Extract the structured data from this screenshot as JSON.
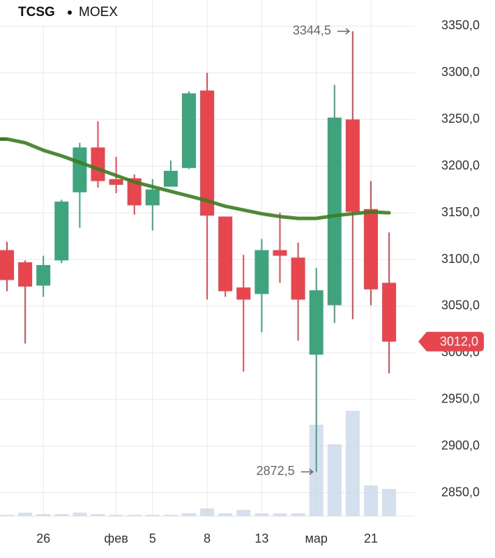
{
  "chart_data": {
    "type": "candlestick",
    "title": "TCSG",
    "subtitle": "MOEX",
    "categories": [
      null,
      null,
      "26",
      null,
      null,
      null,
      "фев",
      null,
      "5",
      null,
      null,
      "8",
      null,
      null,
      "13",
      null,
      null,
      "мар",
      null,
      null,
      "21",
      null
    ],
    "open": [
      3110,
      3097,
      3072,
      3099,
      3172,
      3220,
      3186,
      3187,
      3158,
      3178,
      3198,
      3281,
      3146,
      3070,
      3063,
      3110,
      3102,
      2998,
      3051,
      3250,
      3154,
      3075
    ],
    "high": [
      3119,
      3099,
      3104,
      3164,
      3225,
      3248,
      3210,
      3191,
      3186,
      3206,
      3280,
      3300,
      3146,
      3105,
      3122,
      3150,
      3118,
      3091,
      3287,
      3344.5,
      3184,
      3129
    ],
    "low": [
      3066,
      3010,
      3060,
      3096,
      3134,
      3177,
      3171,
      3148,
      3131,
      3178,
      3197,
      3057,
      3060,
      2980,
      3022,
      3075,
      3013,
      2872.5,
      3032,
      3036,
      3051,
      2978
    ],
    "close": [
      3078,
      3071,
      3094,
      3162,
      3220,
      3184,
      3180,
      3158,
      3175,
      3195,
      3278,
      3147,
      3066,
      3057,
      3110,
      3104,
      3057,
      3067,
      3252,
      3151,
      3068,
      3012
    ],
    "up_color": "#3fa37e",
    "down_color": "#e8464f",
    "ma": {
      "color": "#3a7d1e",
      "values": [
        3229,
        3225,
        3217,
        3211,
        3204,
        3197,
        3190,
        3183,
        3178,
        3173,
        3168,
        3163,
        3157,
        3153,
        3149,
        3146,
        3144,
        3144,
        3147,
        3149,
        3151,
        3150
      ]
    },
    "volume": {
      "color": "#c9d8ea",
      "values": [
        2,
        5,
        3,
        3,
        5,
        3,
        2,
        2,
        2,
        2,
        4,
        11,
        4,
        9,
        4,
        4,
        4,
        131,
        103,
        151,
        44,
        39
      ],
      "vlim": [
        0,
        740
      ]
    },
    "ylim": [
      2825,
      3378
    ],
    "yticks": [
      {
        "value": 2850,
        "label": "2850,0"
      },
      {
        "value": 2900,
        "label": "2900,0"
      },
      {
        "value": 2950,
        "label": "2950,0"
      },
      {
        "value": 3000,
        "label": "3000,0"
      },
      {
        "value": 3050,
        "label": "3050,0"
      },
      {
        "value": 3100,
        "label": "3100,0"
      },
      {
        "value": 3150,
        "label": "3150,0"
      },
      {
        "value": 3200,
        "label": "3200,0"
      },
      {
        "value": 3250,
        "label": "3250,0"
      },
      {
        "value": 3300,
        "label": "3300,0"
      },
      {
        "value": 3350,
        "label": "3350,0"
      }
    ],
    "annotations": [
      {
        "value": 3344.5,
        "label": "3344,5"
      },
      {
        "value": 2872.5,
        "label": "2872,5"
      }
    ],
    "last_price": {
      "value": 3012,
      "label": "3012,0"
    },
    "grid": true
  }
}
